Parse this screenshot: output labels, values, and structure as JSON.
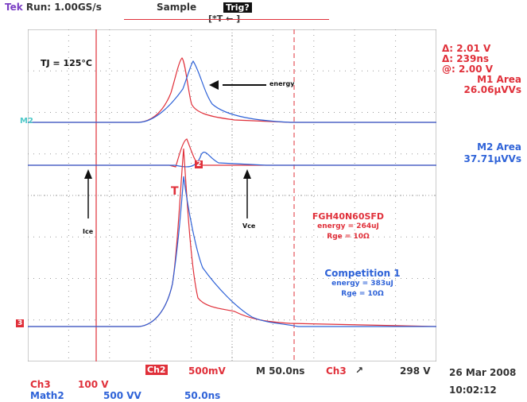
{
  "header": {
    "brand": "Tek",
    "run": "Run: 1.00GS/s",
    "mode": "Sample",
    "trig": "Trig?",
    "trig_pos": "[*T ← ]"
  },
  "annotations": {
    "tj": "TJ = 125°C",
    "energy": "energy",
    "ice": "Ice",
    "vce": "Vce",
    "trigger_t": "T",
    "ch2_marker": "2",
    "m2_marker": "M2",
    "ch3_marker": "3"
  },
  "legend": {
    "device1": "FGH40N60SFD",
    "device1_energy": "energy = 264uJ",
    "device1_rge": "Rge = 10Ω",
    "device2": "Competition 1",
    "device2_energy": "energy = 383uJ",
    "device2_rge": "Rge = 10Ω"
  },
  "cursors": {
    "delta_v": "Δ: 2.01 V",
    "delta_t": "Δ: 239ns",
    "at_v": "@: 2.00 V",
    "m1_title": "M1 Area",
    "m1_value": "26.06µVVs",
    "m2_title": "M2 Area",
    "m2_value": "37.71µVVs"
  },
  "footer": {
    "ch3": "Ch3",
    "ch3_scale": "100 V",
    "ch2": "Ch2",
    "ch2_scale": "500mV",
    "timebase": "M 50.0ns",
    "trig_src": "Ch3",
    "trig_slope": "↗",
    "trig_level": "298 V",
    "math2": "Math2",
    "math2_scale": "500 VV",
    "math2_time": "50.0ns",
    "date": "26 Mar 2008",
    "time": "10:02:12"
  },
  "colors": {
    "red": "#e0303a",
    "blue": "#2f63d8",
    "grid": "#9a9a9a",
    "cursor": "#e0303a"
  },
  "icons": {
    "arrow": "arrow-icon",
    "trigger": "trigger-t-icon"
  }
}
